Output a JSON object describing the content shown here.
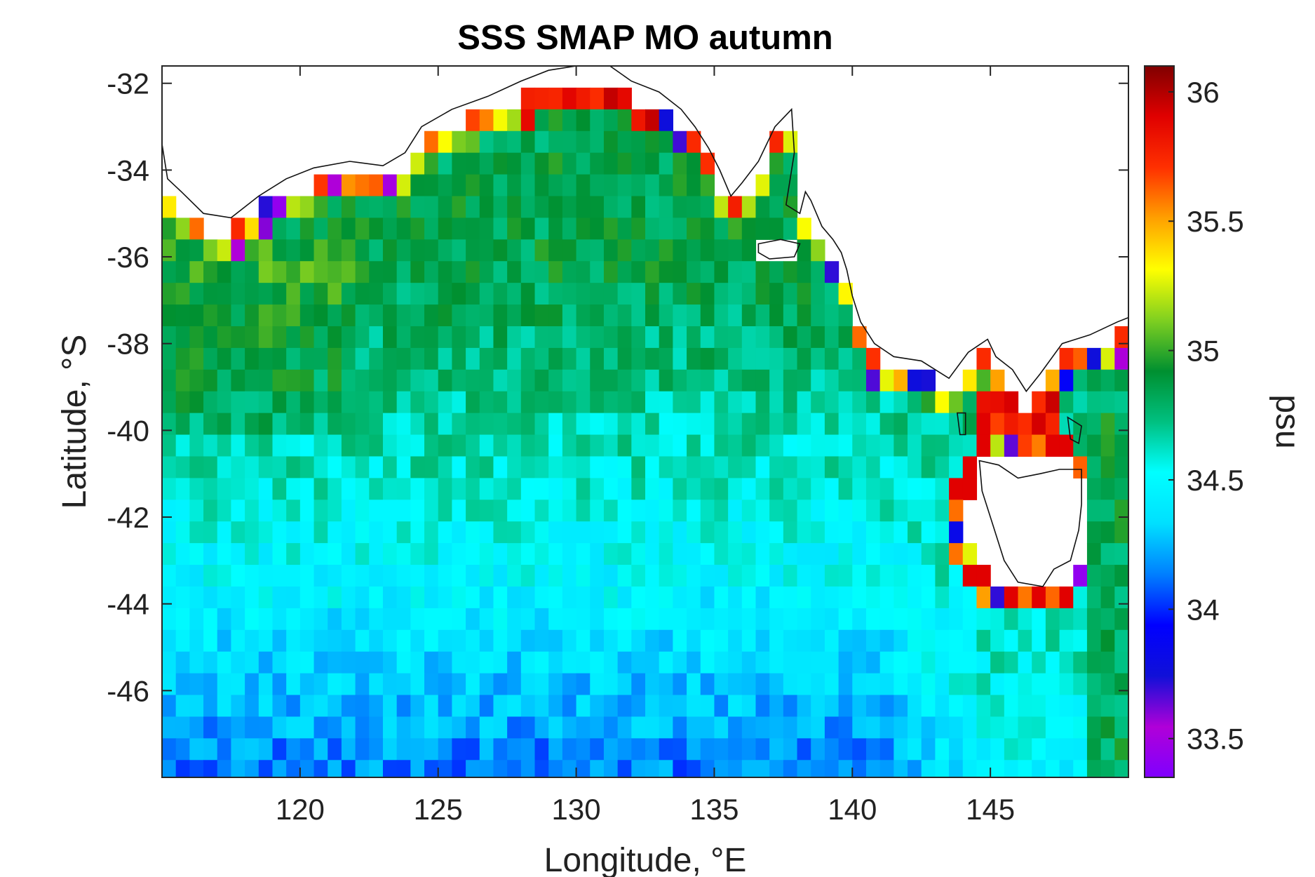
{
  "chart_data": {
    "type": "heatmap",
    "title": "SSS SMAP MO autumn",
    "xlabel": "Longitude, °E",
    "ylabel": "Latitude, °S",
    "xlim": [
      115,
      150
    ],
    "ylim": [
      -48,
      -31.6
    ],
    "xticks": [
      120,
      125,
      130,
      135,
      140,
      145
    ],
    "yticks": [
      -32,
      -34,
      -36,
      -38,
      -40,
      -42,
      -44,
      -46
    ],
    "grid": false,
    "colorbar": {
      "label": "psu",
      "clim": [
        33.35,
        36.1
      ],
      "ticks": [
        33.5,
        34,
        34.5,
        35,
        35.5,
        36
      ],
      "colormap": [
        "#7f00ff",
        "#b000d8",
        "#1010d8",
        "#0000ff",
        "#0080ff",
        "#00e0ff",
        "#00ffff",
        "#00c080",
        "#009030",
        "#80d020",
        "#ffff00",
        "#ffa000",
        "#ff3000",
        "#e00000",
        "#800000"
      ]
    },
    "cell_size_deg": 0.5,
    "salinity_pattern": {
      "north_shelf_mean": 34.85,
      "south_mean": 34.15,
      "coastal_high": 35.9,
      "bass_strait_high": 36.0,
      "great_australian_bight_high": 36.0,
      "east_of_tasmania": 34.85
    },
    "coastline": {
      "mainland": [
        [
          115.0,
          -33.4
        ],
        [
          115.2,
          -34.2
        ],
        [
          115.7,
          -34.5
        ],
        [
          116.5,
          -35.0
        ],
        [
          117.5,
          -35.1
        ],
        [
          118.5,
          -34.6
        ],
        [
          119.5,
          -34.2
        ],
        [
          120.5,
          -33.95
        ],
        [
          121.8,
          -33.8
        ],
        [
          123.0,
          -33.9
        ],
        [
          123.8,
          -33.6
        ],
        [
          124.4,
          -33.0
        ],
        [
          125.5,
          -32.6
        ],
        [
          126.8,
          -32.3
        ],
        [
          128.0,
          -31.95
        ],
        [
          129.0,
          -31.7
        ],
        [
          130.0,
          -31.6
        ],
        [
          131.0,
          -31.5
        ],
        [
          132.0,
          -31.95
        ],
        [
          133.0,
          -32.2
        ],
        [
          133.8,
          -32.6
        ],
        [
          134.3,
          -33.0
        ],
        [
          134.8,
          -33.5
        ],
        [
          135.2,
          -34.0
        ],
        [
          135.6,
          -34.6
        ],
        [
          136.0,
          -34.3
        ],
        [
          136.6,
          -33.8
        ],
        [
          137.2,
          -33.0
        ],
        [
          137.8,
          -32.6
        ],
        [
          137.9,
          -33.6
        ],
        [
          137.6,
          -34.8
        ],
        [
          138.1,
          -35.0
        ],
        [
          138.3,
          -34.5
        ],
        [
          138.5,
          -34.7
        ],
        [
          138.9,
          -35.3
        ],
        [
          139.3,
          -35.6
        ],
        [
          139.6,
          -35.9
        ],
        [
          139.8,
          -36.3
        ],
        [
          140.0,
          -36.9
        ],
        [
          140.3,
          -37.5
        ],
        [
          140.8,
          -38.0
        ],
        [
          141.5,
          -38.3
        ],
        [
          142.5,
          -38.4
        ],
        [
          143.5,
          -38.8
        ],
        [
          144.2,
          -38.2
        ],
        [
          144.9,
          -37.9
        ],
        [
          145.2,
          -38.3
        ],
        [
          145.8,
          -38.6
        ],
        [
          146.3,
          -39.1
        ],
        [
          146.8,
          -38.7
        ],
        [
          147.6,
          -38.0
        ],
        [
          148.6,
          -37.8
        ],
        [
          149.6,
          -37.5
        ],
        [
          150.0,
          -37.4
        ]
      ],
      "tasmania": [
        [
          144.6,
          -40.7
        ],
        [
          145.3,
          -40.8
        ],
        [
          146.0,
          -41.1
        ],
        [
          146.8,
          -41.0
        ],
        [
          147.5,
          -40.9
        ],
        [
          148.3,
          -40.9
        ],
        [
          148.3,
          -41.7
        ],
        [
          148.2,
          -42.3
        ],
        [
          147.9,
          -43.0
        ],
        [
          147.3,
          -43.2
        ],
        [
          146.9,
          -43.6
        ],
        [
          146.0,
          -43.5
        ],
        [
          145.5,
          -43.0
        ],
        [
          145.1,
          -42.2
        ],
        [
          144.7,
          -41.4
        ]
      ],
      "kangaroo_island": [
        [
          136.6,
          -35.7
        ],
        [
          137.4,
          -35.6
        ],
        [
          138.1,
          -35.7
        ],
        [
          137.9,
          -36.0
        ],
        [
          137.0,
          -36.05
        ],
        [
          136.6,
          -35.9
        ]
      ],
      "king_island": [
        [
          143.8,
          -39.6
        ],
        [
          144.1,
          -39.6
        ],
        [
          144.1,
          -40.1
        ],
        [
          143.9,
          -40.1
        ]
      ],
      "flinders_island": [
        [
          147.8,
          -39.7
        ],
        [
          148.3,
          -39.9
        ],
        [
          148.2,
          -40.3
        ],
        [
          147.9,
          -40.2
        ]
      ]
    }
  }
}
